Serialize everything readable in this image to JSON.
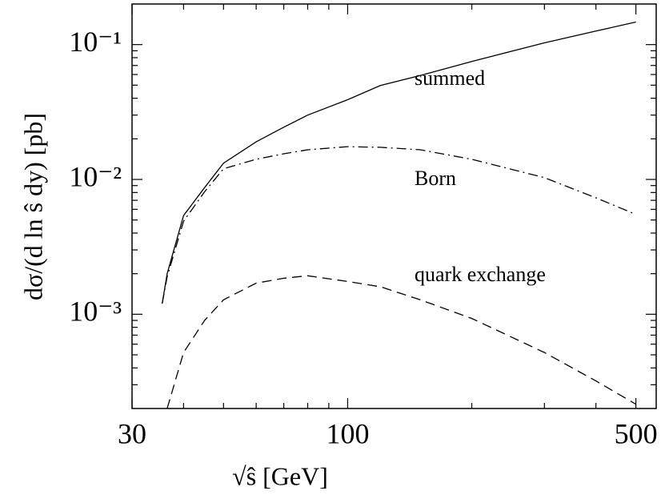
{
  "chart_data": {
    "type": "line",
    "xlabel": "√ŝ  [GeV]",
    "ylabel": "dσ/(d ln ŝ dy)  [pb]",
    "xscale": "log",
    "yscale": "log",
    "xlim": [
      30,
      560
    ],
    "ylim": [
      0.0002,
      0.2
    ],
    "xticks": [
      30,
      100,
      500
    ],
    "xminorticks": [
      40,
      50,
      60,
      70,
      80,
      90,
      200,
      300,
      400
    ],
    "yticks": [
      {
        "value": 0.001,
        "label": "10⁻³"
      },
      {
        "value": 0.01,
        "label": "10⁻²"
      },
      {
        "value": 0.1,
        "label": "10⁻¹"
      }
    ],
    "yminorticks": [
      0.0003,
      0.0004,
      0.0005,
      0.0006,
      0.0007,
      0.0008,
      0.0009,
      0.002,
      0.003,
      0.004,
      0.005,
      0.006,
      0.007,
      0.008,
      0.009,
      0.02,
      0.03,
      0.04,
      0.05,
      0.06,
      0.07,
      0.08,
      0.09
    ],
    "x": [
      35.5,
      36.5,
      40,
      45,
      50,
      60,
      70,
      80,
      100,
      120,
      150,
      200,
      300,
      400,
      500
    ],
    "series": [
      {
        "name": "summed",
        "color": "#000000",
        "dash": "solid",
        "values": [
          0.0012,
          0.002,
          0.0054,
          0.0087,
          0.0132,
          0.019,
          0.0244,
          0.03,
          0.039,
          0.0497,
          0.059,
          0.075,
          0.103,
          0.126,
          0.147
        ]
      },
      {
        "name": "Born",
        "color": "#000000",
        "dash": "dashdot",
        "values": [
          0.0012,
          0.0019,
          0.0049,
          0.0081,
          0.012,
          0.0141,
          0.0155,
          0.0166,
          0.0175,
          0.0173,
          0.0166,
          0.0141,
          0.0103,
          0.0073,
          0.0055
        ]
      },
      {
        "name": "quark exchange",
        "color": "#000000",
        "dash": "dashed",
        "values": [
          null,
          0.0002,
          0.00052,
          0.0009,
          0.00128,
          0.0017,
          0.00185,
          0.00193,
          0.00175,
          0.0016,
          0.00128,
          0.00093,
          0.00052,
          0.00032,
          0.000215
        ]
      }
    ]
  }
}
